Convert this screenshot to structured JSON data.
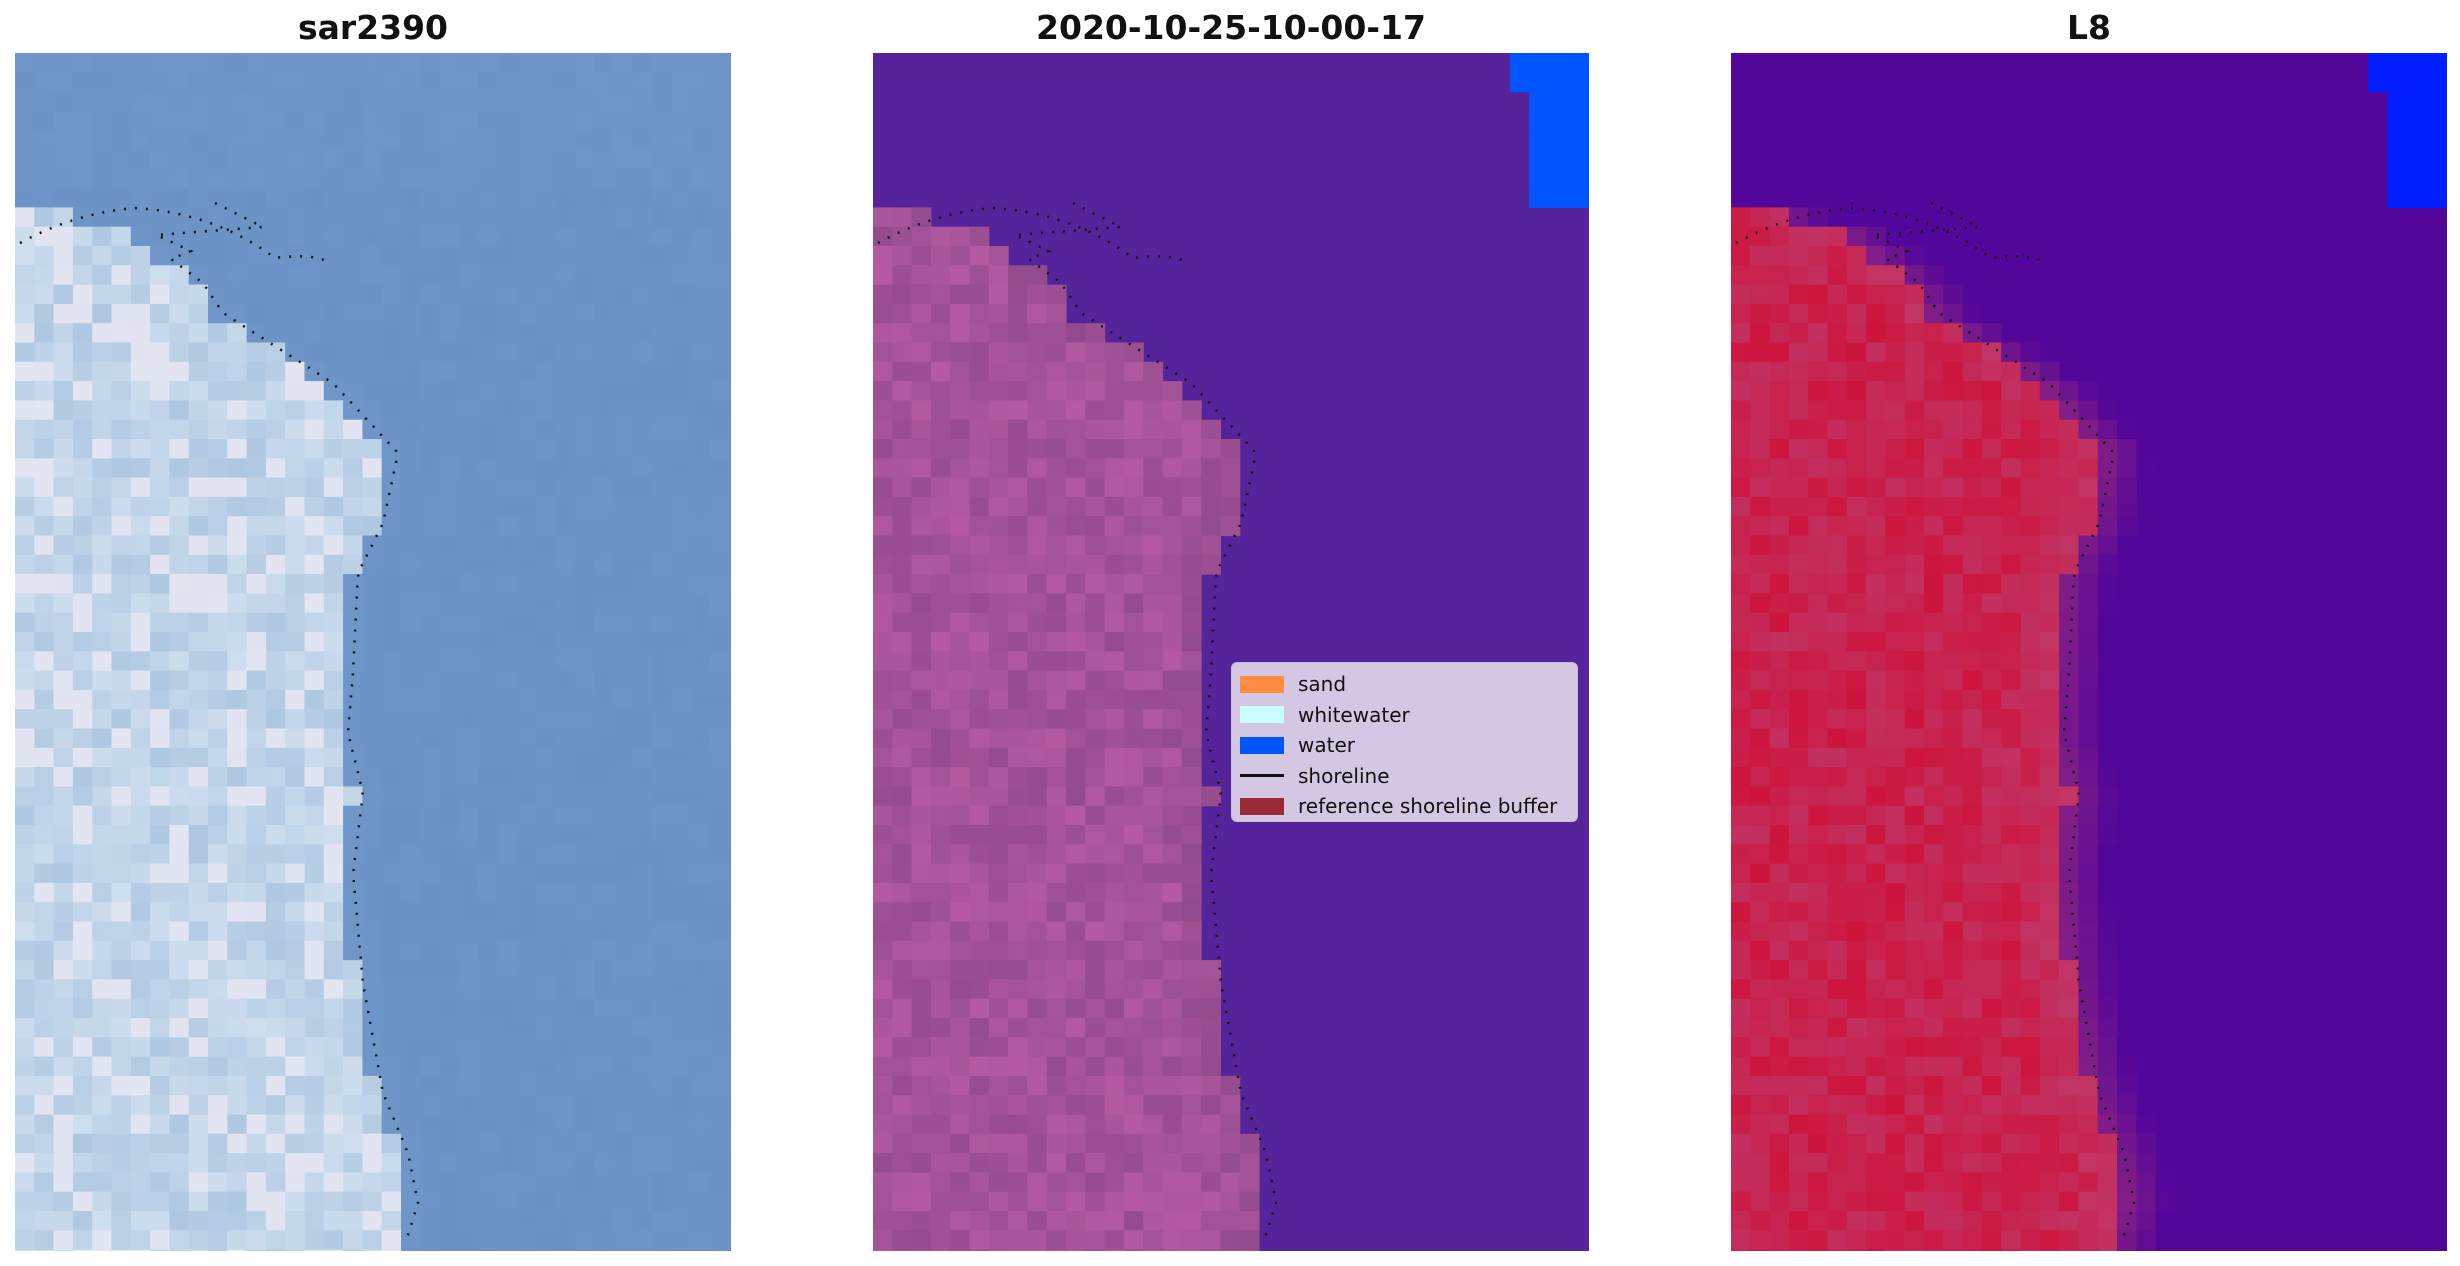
{
  "panels": [
    {
      "title": "sar2390",
      "style": "rgb"
    },
    {
      "title": "2020-10-25-10-00-17",
      "style": "class"
    },
    {
      "title": "L8",
      "style": "mndwi"
    }
  ],
  "legend": {
    "items": [
      {
        "label": "sand",
        "type": "patch",
        "color": "#ff8c42"
      },
      {
        "label": "whitewater",
        "type": "patch",
        "color": "#ccffff"
      },
      {
        "label": "water",
        "type": "patch",
        "color": "#0055ff"
      },
      {
        "label": "shoreline",
        "type": "line",
        "color": "#111111"
      },
      {
        "label": "reference shoreline buffer",
        "type": "patch",
        "color": "#9a2a35"
      }
    ]
  },
  "colors": {
    "ocean_rgb": "#6b93c6",
    "water_class": "#55239a",
    "land_class": "#9e4f94",
    "water_mndwi": "#52069a",
    "land_mndwi": "#c4143f",
    "water_blue": "#0055ff",
    "shoreline_dots": "#111111"
  }
}
